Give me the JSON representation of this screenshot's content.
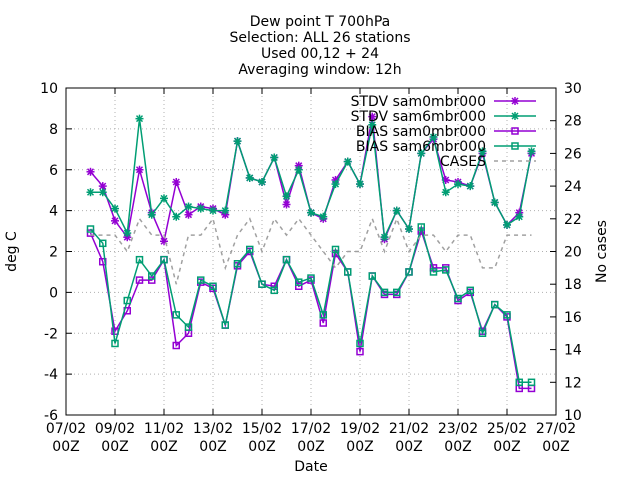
{
  "chart_data": {
    "type": "line",
    "title_lines": [
      "Dew point T 700hPa",
      "Selection: ALL      26 stations",
      "Used 00,12 + 24",
      "Averaging window: 12h"
    ],
    "xlabel": "Date",
    "ylabel": "deg C",
    "y2label": "No cases",
    "xlim": [
      "2023-02-07 00:00",
      "2023-02-27 00:00"
    ],
    "ylim": [
      -6,
      10
    ],
    "y2lim": [
      10,
      30
    ],
    "x_ticks": [
      {
        "date": "07/02",
        "hour": "00Z"
      },
      {
        "date": "09/02",
        "hour": "00Z"
      },
      {
        "date": "11/02",
        "hour": "00Z"
      },
      {
        "date": "13/02",
        "hour": "00Z"
      },
      {
        "date": "15/02",
        "hour": "00Z"
      },
      {
        "date": "17/02",
        "hour": "00Z"
      },
      {
        "date": "19/02",
        "hour": "00Z"
      },
      {
        "date": "21/02",
        "hour": "00Z"
      },
      {
        "date": "23/02",
        "hour": "00Z"
      },
      {
        "date": "25/02",
        "hour": "00Z"
      },
      {
        "date": "27/02",
        "hour": "00Z"
      }
    ],
    "y_ticks": [
      "-6",
      "-4",
      "-2",
      "0",
      "2",
      "4",
      "6",
      "8",
      "10"
    ],
    "y2_ticks": [
      "10",
      "12",
      "14",
      "16",
      "18",
      "20",
      "22",
      "24",
      "26",
      "28",
      "30"
    ],
    "grid": true,
    "legend_position": "top-right",
    "series": [
      {
        "name": "STDV sam0mbr000",
        "color": "#9400d3",
        "marker": "star",
        "axis": "y1",
        "values": [
          5.9,
          5.2,
          3.5,
          2.7,
          6.0,
          3.9,
          2.5,
          5.4,
          3.8,
          4.2,
          4.1,
          3.8,
          7.4,
          5.6,
          5.4,
          6.6,
          4.3,
          6.2,
          3.9,
          3.6,
          5.5,
          6.4,
          5.3,
          8.6,
          2.6,
          4.0,
          3.1,
          6.8,
          7.5,
          5.5,
          5.4,
          5.2,
          6.8,
          4.4,
          3.3,
          3.9,
          6.8
        ]
      },
      {
        "name": "STDV sam6mbr000",
        "color": "#009e73",
        "marker": "star",
        "axis": "y1",
        "values": [
          4.9,
          4.9,
          4.1,
          2.9,
          8.5,
          3.8,
          4.6,
          3.7,
          4.2,
          4.1,
          4.0,
          4.0,
          7.4,
          5.6,
          5.4,
          6.6,
          4.7,
          6.0,
          3.9,
          3.7,
          5.3,
          6.4,
          5.3,
          8.2,
          2.7,
          4.0,
          3.1,
          6.8,
          7.6,
          4.9,
          5.3,
          5.2,
          6.9,
          4.4,
          3.3,
          3.7,
          6.9
        ]
      },
      {
        "name": "BIAS sam0mbr000",
        "color": "#9400d3",
        "marker": "square",
        "axis": "y1",
        "values": [
          2.9,
          1.5,
          -1.9,
          -0.9,
          0.6,
          0.6,
          1.6,
          -2.6,
          -2.0,
          0.5,
          0.2,
          -1.6,
          1.3,
          2.0,
          0.4,
          0.3,
          1.6,
          0.3,
          0.6,
          -1.5,
          1.9,
          1.0,
          -2.9,
          0.8,
          -0.1,
          -0.1,
          1.0,
          3.0,
          1.2,
          1.2,
          -0.4,
          0.0,
          -1.9,
          -0.6,
          -1.2,
          -4.7,
          -4.7
        ]
      },
      {
        "name": "BIAS sam6mbr000",
        "color": "#009e73",
        "marker": "square",
        "axis": "y1",
        "values": [
          3.1,
          2.4,
          -2.5,
          -0.4,
          1.6,
          0.8,
          1.6,
          -1.1,
          -1.7,
          0.6,
          0.3,
          -1.6,
          1.4,
          2.1,
          0.4,
          0.1,
          1.6,
          0.5,
          0.7,
          -1.1,
          2.1,
          1.0,
          -2.5,
          0.8,
          0.0,
          0.0,
          1.0,
          3.2,
          1.0,
          1.1,
          -0.3,
          0.1,
          -2.0,
          -0.6,
          -1.1,
          -4.4,
          -4.4
        ]
      },
      {
        "name": "CASES",
        "color": "#a0a0a0",
        "marker": "none",
        "dashed": true,
        "axis": "y2",
        "values": [
          21,
          21,
          21,
          20,
          22,
          21,
          21,
          18,
          21,
          21,
          22,
          19,
          21,
          22,
          20,
          22,
          21,
          22,
          21,
          20,
          19,
          20,
          20,
          22,
          20,
          22,
          20,
          21,
          21,
          20,
          21,
          21,
          19,
          19,
          21,
          21,
          21
        ]
      }
    ],
    "series_time": {
      "start": "2023-02-08 00:00",
      "step_hours": 12,
      "note_skip": []
    }
  }
}
